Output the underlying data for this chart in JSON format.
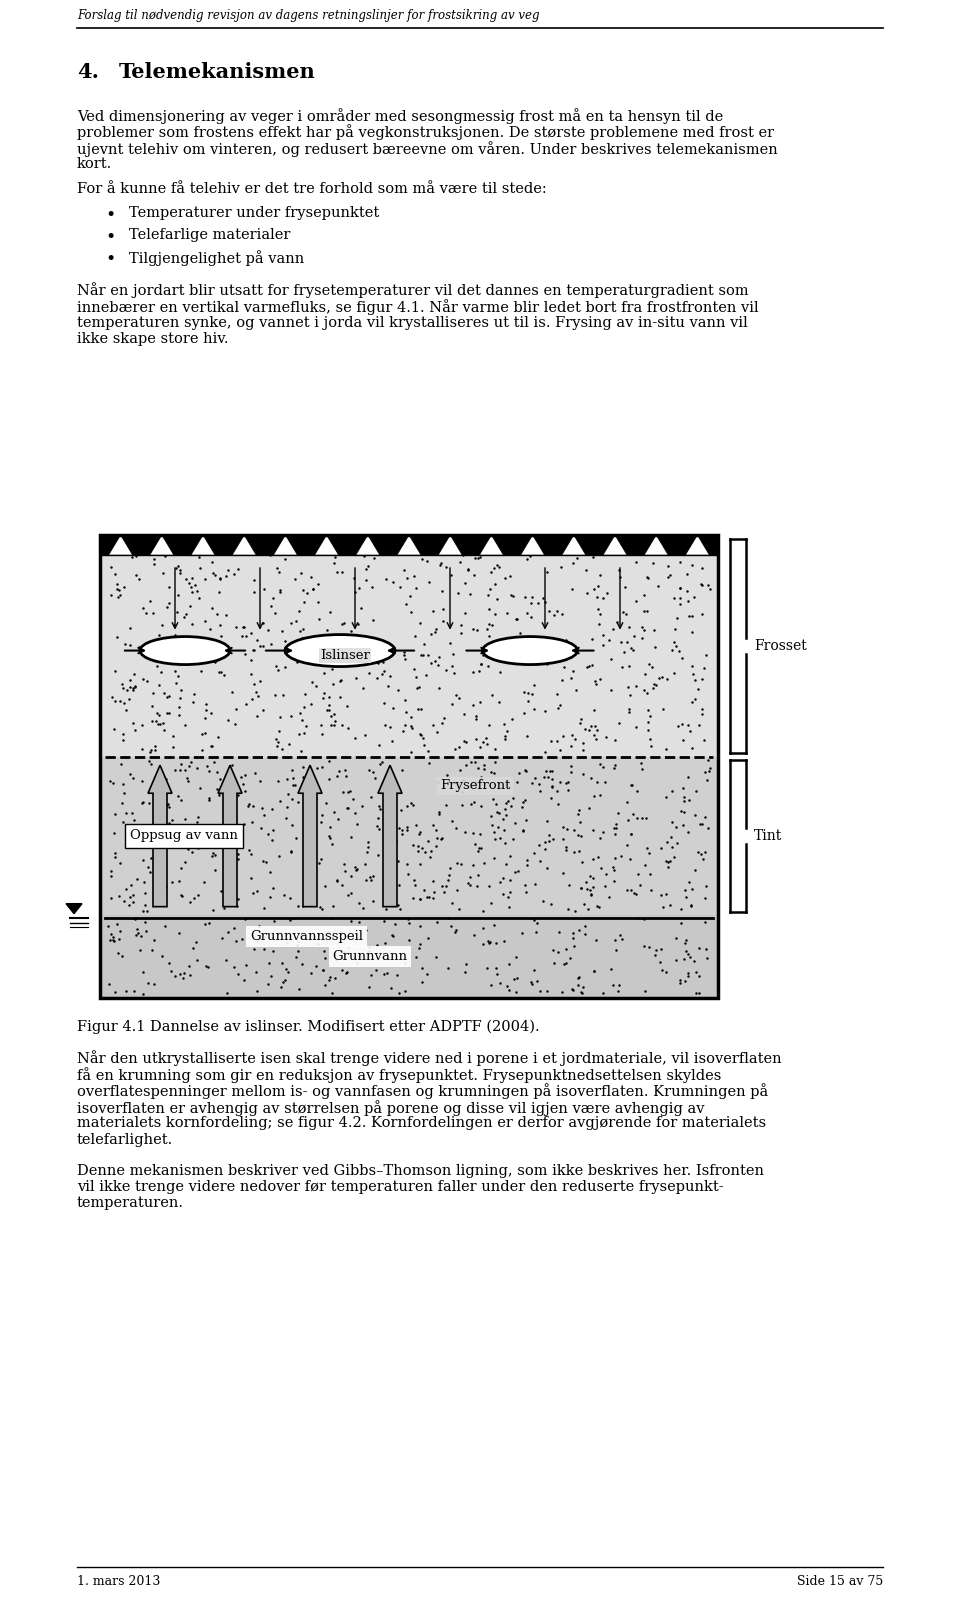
{
  "header_text": "Forslag til nødvendig revisjon av dagens retningslinjer for frostsikring av veg",
  "footer_left": "1. mars 2013",
  "footer_right": "Side 15 av 75",
  "section_number": "4.",
  "section_title": "Telemekanismen",
  "p1_line1": "Ved dimensjonering av veger i områder med sesongmessig frost må en ta hensyn til de",
  "p1_line2": "problemer som frostens effekt har på vegkonstruksjonen. De største problemene med frost er",
  "p1_line3": "ujevnt telehiv om vinteren, og redusert bæreevne om våren. Under beskrives telemekanismen",
  "p1_line4": "kort.",
  "paragraph2_intro": "For å kunne få telehiv er det tre forhold som må være til stede:",
  "bullet1": "Temperaturer under frysepunktet",
  "bullet2": "Telefarlige materialer",
  "bullet3": "Tilgjengelighet på vann",
  "p2c_line1": "Når en jordart blir utsatt for frysetemperaturer vil det dannes en temperaturgradient som",
  "p2c_line2": "innebærer en vertikal varmefluks, se figur 4.1. Når varme blir ledet bort fra frostfronten vil",
  "p2c_line3": "temperaturen synke, og vannet i jorda vil krystalliseres ut til is. Frysing av in-situ vann vil",
  "p2c_line4": "ikke skape store hiv.",
  "label_islinser": "Islinser",
  "label_frysefront": "Frysefront",
  "label_oppsug": "Oppsug av vann",
  "label_grunnvannsspeil": "Grunnvannsspeil",
  "label_grunnvann": "Grunnvann",
  "label_frosset": "Frosset",
  "label_tint": "Tint",
  "figure_caption": "Figur 4.1 Dannelse av islinser. Modifisert etter ADPTF (2004).",
  "p3_line1": "Når den utkrystalliserte isen skal trenge videre ned i porene i et jordmateriale, vil isoverflaten",
  "p3_line2": "få en krumning som gir en reduksjon av frysepunktet. Frysepunktnedsettelsen skyldes",
  "p3_line3": "overflatespenninger mellom is- og vannfasen og krumningen på isoverflaten. Krumningen på",
  "p3_line4": "isoverflaten er avhengig av størrelsen på porene og disse vil igjen være avhengig av",
  "p3_line5": "materialets kornfordeling; se figur 4.2. Kornfordelingen er derfor avgjørende for materialets",
  "p3_line6": "telefarlighet.",
  "p4_line1": "Denne mekanismen beskriver ved Gibbs–Thomson ligning, som ikke beskrives her. Isfronten",
  "p4_line2": "vil ikke trenge videre nedover før temperaturen faller under den reduserte frysepunkt-",
  "p4_line3": "temperaturen.",
  "bg_color": "#ffffff",
  "text_color": "#000000",
  "font_size_header": 8.5,
  "font_size_section": 15,
  "font_size_body": 10.5,
  "font_size_footer": 9
}
